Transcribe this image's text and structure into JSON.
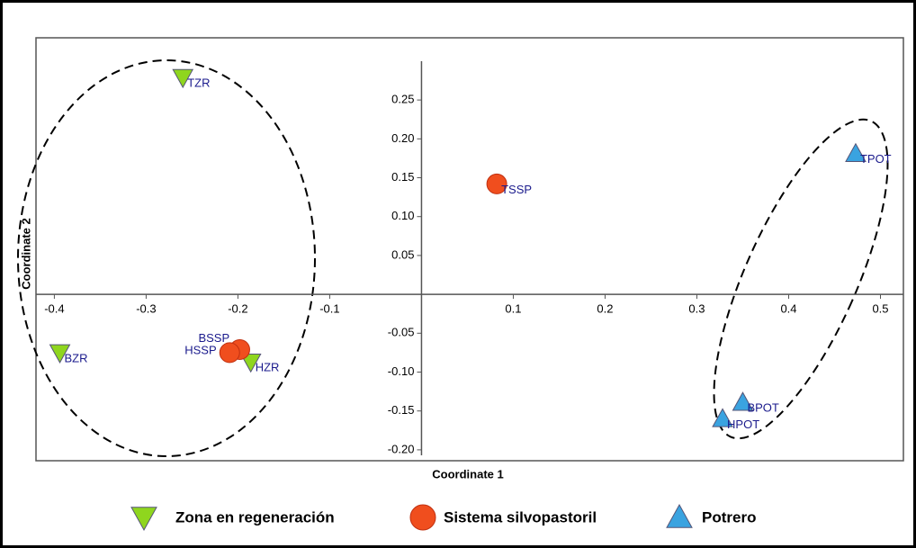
{
  "chart_data": {
    "type": "scatter",
    "xlabel": "Coordinate 1",
    "ylabel": "Coordinate 2",
    "xlim": [
      -0.42,
      0.525
    ],
    "ylim": [
      -0.214,
      0.33
    ],
    "xticks": [
      -0.4,
      -0.3,
      -0.2,
      -0.1,
      0.1,
      0.2,
      0.3,
      0.4,
      0.5
    ],
    "yticks": [
      0.25,
      {
        "value": 0.2,
        "label": "0.20"
      },
      0.15,
      {
        "value": 0.1,
        "label": "0.10"
      },
      0.05,
      -0.05,
      {
        "value": -0.1,
        "label": "-0.10"
      },
      -0.15,
      {
        "value": -0.2,
        "label": "-0.20"
      }
    ],
    "series": [
      {
        "name": "Zona en regeneración",
        "color": "#8fd61e",
        "marker": "triangle-down",
        "x": [
          -0.26,
          -0.394,
          -0.186
        ],
        "y": [
          0.279,
          -0.075,
          -0.087
        ],
        "labels": [
          "TZR",
          "BZR",
          "HZR"
        ]
      },
      {
        "name": "Sistema silvopastoril",
        "color": "#f04e1e",
        "marker": "circle",
        "x": [
          -0.198,
          -0.209,
          0.082
        ],
        "y": [
          -0.071,
          -0.075,
          0.142
        ],
        "labels": [
          "BSSP",
          "HSSP",
          "TSSP"
        ]
      },
      {
        "name": "Potrero",
        "color": "#3aa3e0",
        "marker": "triangle-up",
        "x": [
          0.473,
          0.35,
          0.328
        ],
        "y": [
          0.181,
          -0.139,
          -0.16
        ],
        "labels": [
          "TPOT",
          "BPOT",
          "HPOT"
        ]
      }
    ]
  }
}
